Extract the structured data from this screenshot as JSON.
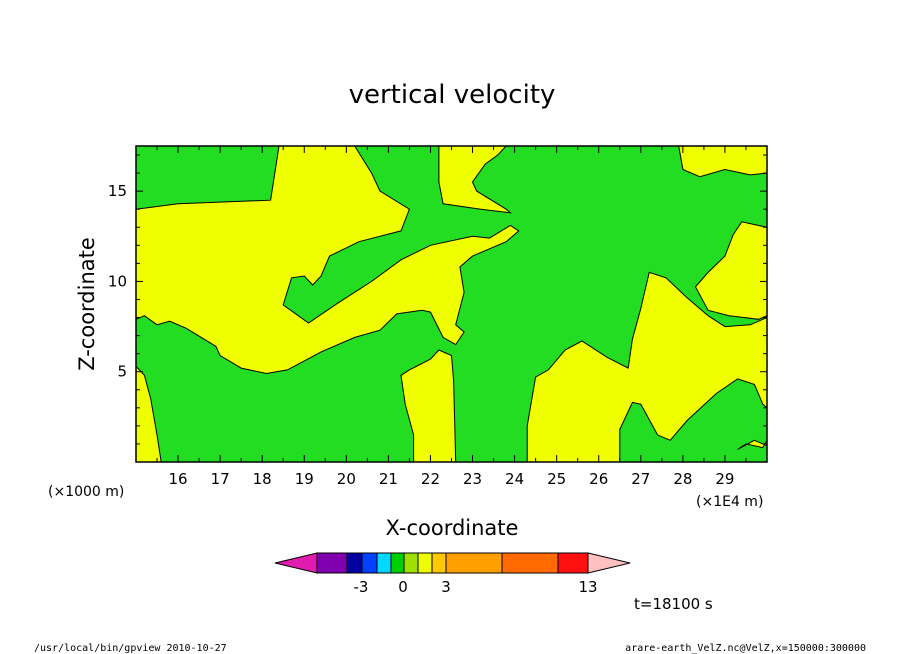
{
  "chart_data": {
    "type": "heatmap",
    "title": "vertical velocity",
    "xlabel": "X-coordinate",
    "ylabel": "Z-coordinate",
    "x_unit_note": "(×1E4 m)",
    "y_unit_note": "(×1000 m)",
    "xticks": [
      "16",
      "17",
      "18",
      "19",
      "20",
      "21",
      "22",
      "23",
      "24",
      "25",
      "26",
      "27",
      "28",
      "29"
    ],
    "yticks": [
      "5",
      "10",
      "15"
    ],
    "xlim": [
      15,
      30
    ],
    "ylim": [
      0,
      17.5
    ],
    "time_label": "t=18100 s",
    "colorbar": {
      "labels": [
        "-3",
        "0",
        "3",
        "13"
      ],
      "colors": [
        "#e01cb0",
        "#8000b0",
        "#0000a0",
        "#0040ff",
        "#00d8ff",
        "#00d000",
        "#a0e000",
        "#f0ff00",
        "#ffc800",
        "#ffa000",
        "#ff6a00",
        "#ff1010",
        "#ff8080",
        "#ffc0c0"
      ]
    },
    "fill_colors": {
      "positive": "#f0ff00",
      "near_zero": "#22dd22"
    }
  },
  "footer": {
    "left": "/usr/local/bin/gpview   2010-10-27",
    "right": "arare-earth_VelZ.nc@VelZ,x=150000:300000"
  }
}
